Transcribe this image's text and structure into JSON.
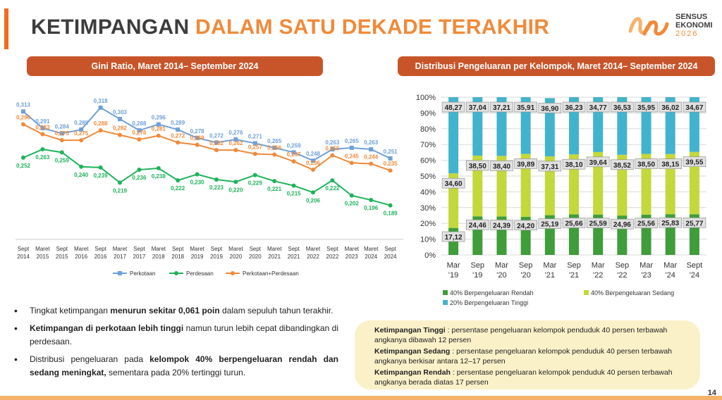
{
  "page": {
    "title_part1": "KETIMPANGAN",
    "title_part2": "DALAM SATU DEKADE TERAKHIR",
    "logo_line1": "SENSUS",
    "logo_line2": "EKONOMI",
    "logo_year": "2026",
    "page_number": "14",
    "accent_color": "#f26b1d",
    "pill_color": "#c8552a"
  },
  "left_panel": {
    "header": "Gini Ratio, Maret 2014– September 2024"
  },
  "right_panel": {
    "header": "Distribusi Pengeluaran per Kelompok, Maret 2014– September 2024"
  },
  "chart_data": [
    {
      "type": "line",
      "title": "Gini Ratio, Maret 2014– September 2024",
      "categories": [
        [
          "Sept",
          "2014"
        ],
        [
          "Maret",
          "2015"
        ],
        [
          "Sept",
          "2015"
        ],
        [
          "Maret",
          "2016"
        ],
        [
          "Sept",
          "2016"
        ],
        [
          "Maret",
          "2017"
        ],
        [
          "Sept",
          "2017"
        ],
        [
          "Maret",
          "2018"
        ],
        [
          "Sept",
          "2018"
        ],
        [
          "Maret",
          "2019"
        ],
        [
          "Sept",
          "2019"
        ],
        [
          "Maret",
          "2020"
        ],
        [
          "Sept",
          "2020"
        ],
        [
          "Maret",
          "2021"
        ],
        [
          "Sept",
          "2021"
        ],
        [
          "Maret",
          "2022"
        ],
        [
          "Sept",
          "2022"
        ],
        [
          "Maret",
          "2023"
        ],
        [
          "Maret",
          "2024"
        ],
        [
          "Sept",
          "2024"
        ]
      ],
      "ylim": [
        0.17,
        0.33
      ],
      "grid": false,
      "legend": "bottom",
      "series": [
        {
          "name": "Perkotaan",
          "color": "#6fa0d8",
          "labels": [
            "0,313",
            "0,291",
            "0,284",
            "0,289",
            "0,318",
            "0,303",
            "0,288",
            "0,296",
            "0,289",
            "0,278",
            "0,272",
            "0,276",
            "0,271",
            "0,265",
            "0,259",
            "0,248",
            "0,263",
            "0,265",
            "0,263",
            "0,251"
          ],
          "values": [
            0.313,
            0.291,
            0.284,
            0.289,
            0.318,
            0.303,
            0.288,
            0.296,
            0.289,
            0.278,
            0.272,
            0.276,
            0.271,
            0.265,
            0.259,
            0.248,
            0.263,
            0.265,
            0.263,
            0.251
          ]
        },
        {
          "name": "Perdesaan",
          "color": "#1fb35a",
          "labels": [
            "0,252",
            "0,263",
            "0,259",
            "0,240",
            "0,239",
            "0,219",
            "0,236",
            "0,238",
            "0,222",
            "0,230",
            "0,223",
            "0,220",
            "0,229",
            "0,221",
            "0,215",
            "0,206",
            "0,222",
            "0,202",
            "0,196",
            "0,189"
          ],
          "values": [
            0.252,
            0.263,
            0.259,
            0.24,
            0.239,
            0.219,
            0.236,
            0.238,
            0.222,
            0.23,
            0.223,
            0.22,
            0.229,
            0.221,
            0.215,
            0.206,
            0.222,
            0.202,
            0.196,
            0.189
          ]
        },
        {
          "name": "Perkotaan+Perdesaan",
          "color": "#f08a3a",
          "labels": [
            "0,296",
            "0,283",
            "0,275",
            "0,275",
            "0,288",
            "0,282",
            "0,276",
            "0,281",
            "0,272",
            "0,269",
            "0,262",
            "0,262",
            "0,257",
            "0,256",
            "0,247",
            "0,236",
            "0,255",
            "0,245",
            "0,244",
            "0,235"
          ],
          "values": [
            0.296,
            0.283,
            0.275,
            0.275,
            0.288,
            0.282,
            0.276,
            0.281,
            0.272,
            0.269,
            0.262,
            0.262,
            0.257,
            0.256,
            0.247,
            0.236,
            0.255,
            0.245,
            0.244,
            0.235
          ]
        }
      ]
    },
    {
      "type": "bar",
      "stacked": true,
      "title": "Distribusi Pengeluaran per Kelompok, Maret 2014– September 2024",
      "categories": [
        [
          "Mar",
          "'19"
        ],
        [
          "Sep",
          "'19"
        ],
        [
          "Mar",
          "'20"
        ],
        [
          "Sep",
          "'20"
        ],
        [
          "Mar",
          "'21"
        ],
        [
          "Sep",
          "'21"
        ],
        [
          "Mar",
          "'22"
        ],
        [
          "Sep",
          "'22"
        ],
        [
          "Mar",
          "'23"
        ],
        [
          "Mar",
          "'24"
        ],
        [
          "Sept",
          "'24"
        ]
      ],
      "ylim": [
        0,
        100
      ],
      "yticks": [
        "0%",
        "10%",
        "20%",
        "30%",
        "40%",
        "50%",
        "60%",
        "70%",
        "80%",
        "90%",
        "100%"
      ],
      "grid": true,
      "legend": "bottom",
      "series": [
        {
          "name": "40% Berpengeluaran Rendah",
          "color": "#3f9d3a",
          "labels": [
            "17,12",
            "24,46",
            "24,39",
            "24,20",
            "25,19",
            "25,66",
            "25,59",
            "24,96",
            "25,56",
            "25,83",
            "25,77"
          ],
          "values": [
            17.12,
            24.46,
            24.39,
            24.2,
            25.19,
            25.66,
            25.59,
            24.96,
            25.56,
            25.83,
            25.77
          ]
        },
        {
          "name": "40% Berpengeluaran Sedang",
          "color": "#c3d83a",
          "labels": [
            "34,60",
            "38,50",
            "38,40",
            "39,89",
            "37,31",
            "38,10",
            "39,64",
            "38,52",
            "38,50",
            "38,15",
            "39,55"
          ],
          "values": [
            34.6,
            38.5,
            38.4,
            39.89,
            37.31,
            38.1,
            39.64,
            38.52,
            38.5,
            38.15,
            39.55
          ]
        },
        {
          "name": "20% Berpengeluaran Tinggi",
          "color": "#42b3cd",
          "labels": [
            "48,27",
            "37,04",
            "37,21",
            "35,91",
            "36,90",
            "36,23",
            "34,77",
            "36,53",
            "35,95",
            "36,02",
            "34,67"
          ],
          "values": [
            48.27,
            37.04,
            37.21,
            35.91,
            36.9,
            36.23,
            34.77,
            36.53,
            35.95,
            36.02,
            34.67
          ]
        }
      ]
    }
  ],
  "bullets": [
    {
      "pre": "Tingkat ketimpangan ",
      "bold": "menurun sekitar 0,061 poin",
      "post": " dalam sepuluh tahun terakhir."
    },
    {
      "pre": "",
      "bold": "Ketimpangan di perkotaan lebih tinggi",
      "post": " namun turun lebih cepat dibandingkan di perdesaan."
    },
    {
      "pre": "Distribusi pengeluaran pada ",
      "bold": "kelompok 40% berpengeluaran rendah dan sedang meningkat,",
      "post": " sementara pada 20% tertinggi turun."
    }
  ],
  "definitions": [
    {
      "term": "Ketimpangan Tinggi",
      "text": "   : persentase pengeluaran kelompok penduduk 40 persen terbawah angkanya dibawah 12 persen"
    },
    {
      "term": "Ketimpangan Sedang",
      "text": " : persentase pengeluaran kelompok penduduk 40 persen terbawah angkanya berkisar antara 12–17 persen"
    },
    {
      "term": "Ketimpangan Rendah",
      "text": " : persentase pengeluaran kelompok penduduk 40 persen terbawah angkanya berada diatas 17 persen"
    }
  ]
}
